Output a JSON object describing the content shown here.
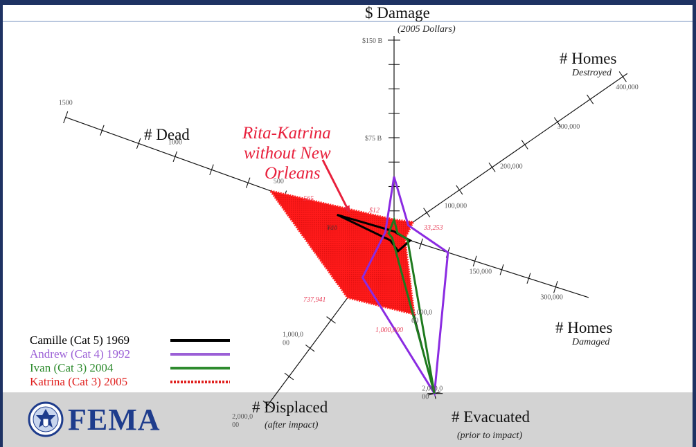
{
  "chart_data": {
    "type": "radar",
    "axes": [
      {
        "key": "damage",
        "title": "$ Damage",
        "subtitle": "(2005 Dollars)",
        "max": 150,
        "tick_labels": [
          "$75 B",
          "$150 B"
        ]
      },
      {
        "key": "homes_destroyed",
        "title": "# Homes",
        "subtitle": "Destroyed",
        "max": 400000,
        "tick_labels": [
          "100,000",
          "200,000",
          "300,000",
          "400,000"
        ]
      },
      {
        "key": "homes_damaged",
        "title": "# Homes",
        "subtitle": "Damaged",
        "max": 300000,
        "tick_labels": [
          "150,000",
          "300,000"
        ]
      },
      {
        "key": "evacuated",
        "title": "# Evacuated",
        "subtitle": "(prior to impact)",
        "max": 2000000,
        "tick_labels": [
          "1,000,0 00",
          "2,000,0 00"
        ]
      },
      {
        "key": "displaced",
        "title": "# Displaced",
        "subtitle": "(after impact)",
        "max": 2000000,
        "tick_labels": [
          "1,000,0 00",
          "2,000,0 00"
        ]
      },
      {
        "key": "dead",
        "title": "# Dead",
        "subtitle": "",
        "max": 1500,
        "tick_labels": [
          "500",
          "1000",
          "1500"
        ]
      }
    ],
    "series": [
      {
        "name": "Camille (Cat 5) 1969",
        "color": "#000000",
        "style": "solid",
        "values": {
          "damage": 3,
          "homes_destroyed": 5000,
          "homes_damaged": 30000,
          "evacuated": 200000,
          "displaced": 60000,
          "dead": 260
        }
      },
      {
        "name": "Andrew (Cat 4) 1992",
        "color": "#8b2be2",
        "style": "solid",
        "values": {
          "damage": 45,
          "homes_destroyed": 25000,
          "homes_damaged": 100000,
          "evacuated": 2000000,
          "displaced": 500000,
          "dead": 40
        }
      },
      {
        "name": "Ivan (Cat 3) 2004",
        "color": "#1e7a1e",
        "style": "solid",
        "values": {
          "damage": 12,
          "homes_destroyed": 6000,
          "homes_damaged": 25000,
          "evacuated": 2000000,
          "displaced": 30000,
          "dead": 25
        }
      },
      {
        "name": "Katrina (Cat 3) 2005",
        "color": "#e0201e",
        "style": "dotted-fill",
        "values": {
          "damage": 12,
          "homes_destroyed": 33253,
          "homes_damaged": 20000,
          "evacuated": 1000000,
          "displaced": 737941,
          "dead": 565
        }
      }
    ],
    "annotations": {
      "callout_lines": [
        "Rita-Katrina",
        "without New",
        "Orleans"
      ],
      "dead_value": "565",
      "damage_value": "$12",
      "dead_inner": "¥äö",
      "homes_destroyed_value": "33,253",
      "displaced_value": "737,941",
      "evacuated_value": "1,000,000"
    }
  },
  "legend": [
    {
      "label": "Camille (Cat 5) 1969",
      "color": "#000000",
      "line": "solid"
    },
    {
      "label": "Andrew (Cat 4) 1992",
      "color": "#9b5fd6",
      "line": "solid"
    },
    {
      "label": "Ivan (Cat 3) 2004",
      "color": "#2e8b2e",
      "line": "solid"
    },
    {
      "label": "Katrina (Cat 3) 2005",
      "color": "#e0201e",
      "line": "dotted"
    }
  ],
  "logo": {
    "text": "FEMA",
    "color": "#1e3c8c"
  }
}
